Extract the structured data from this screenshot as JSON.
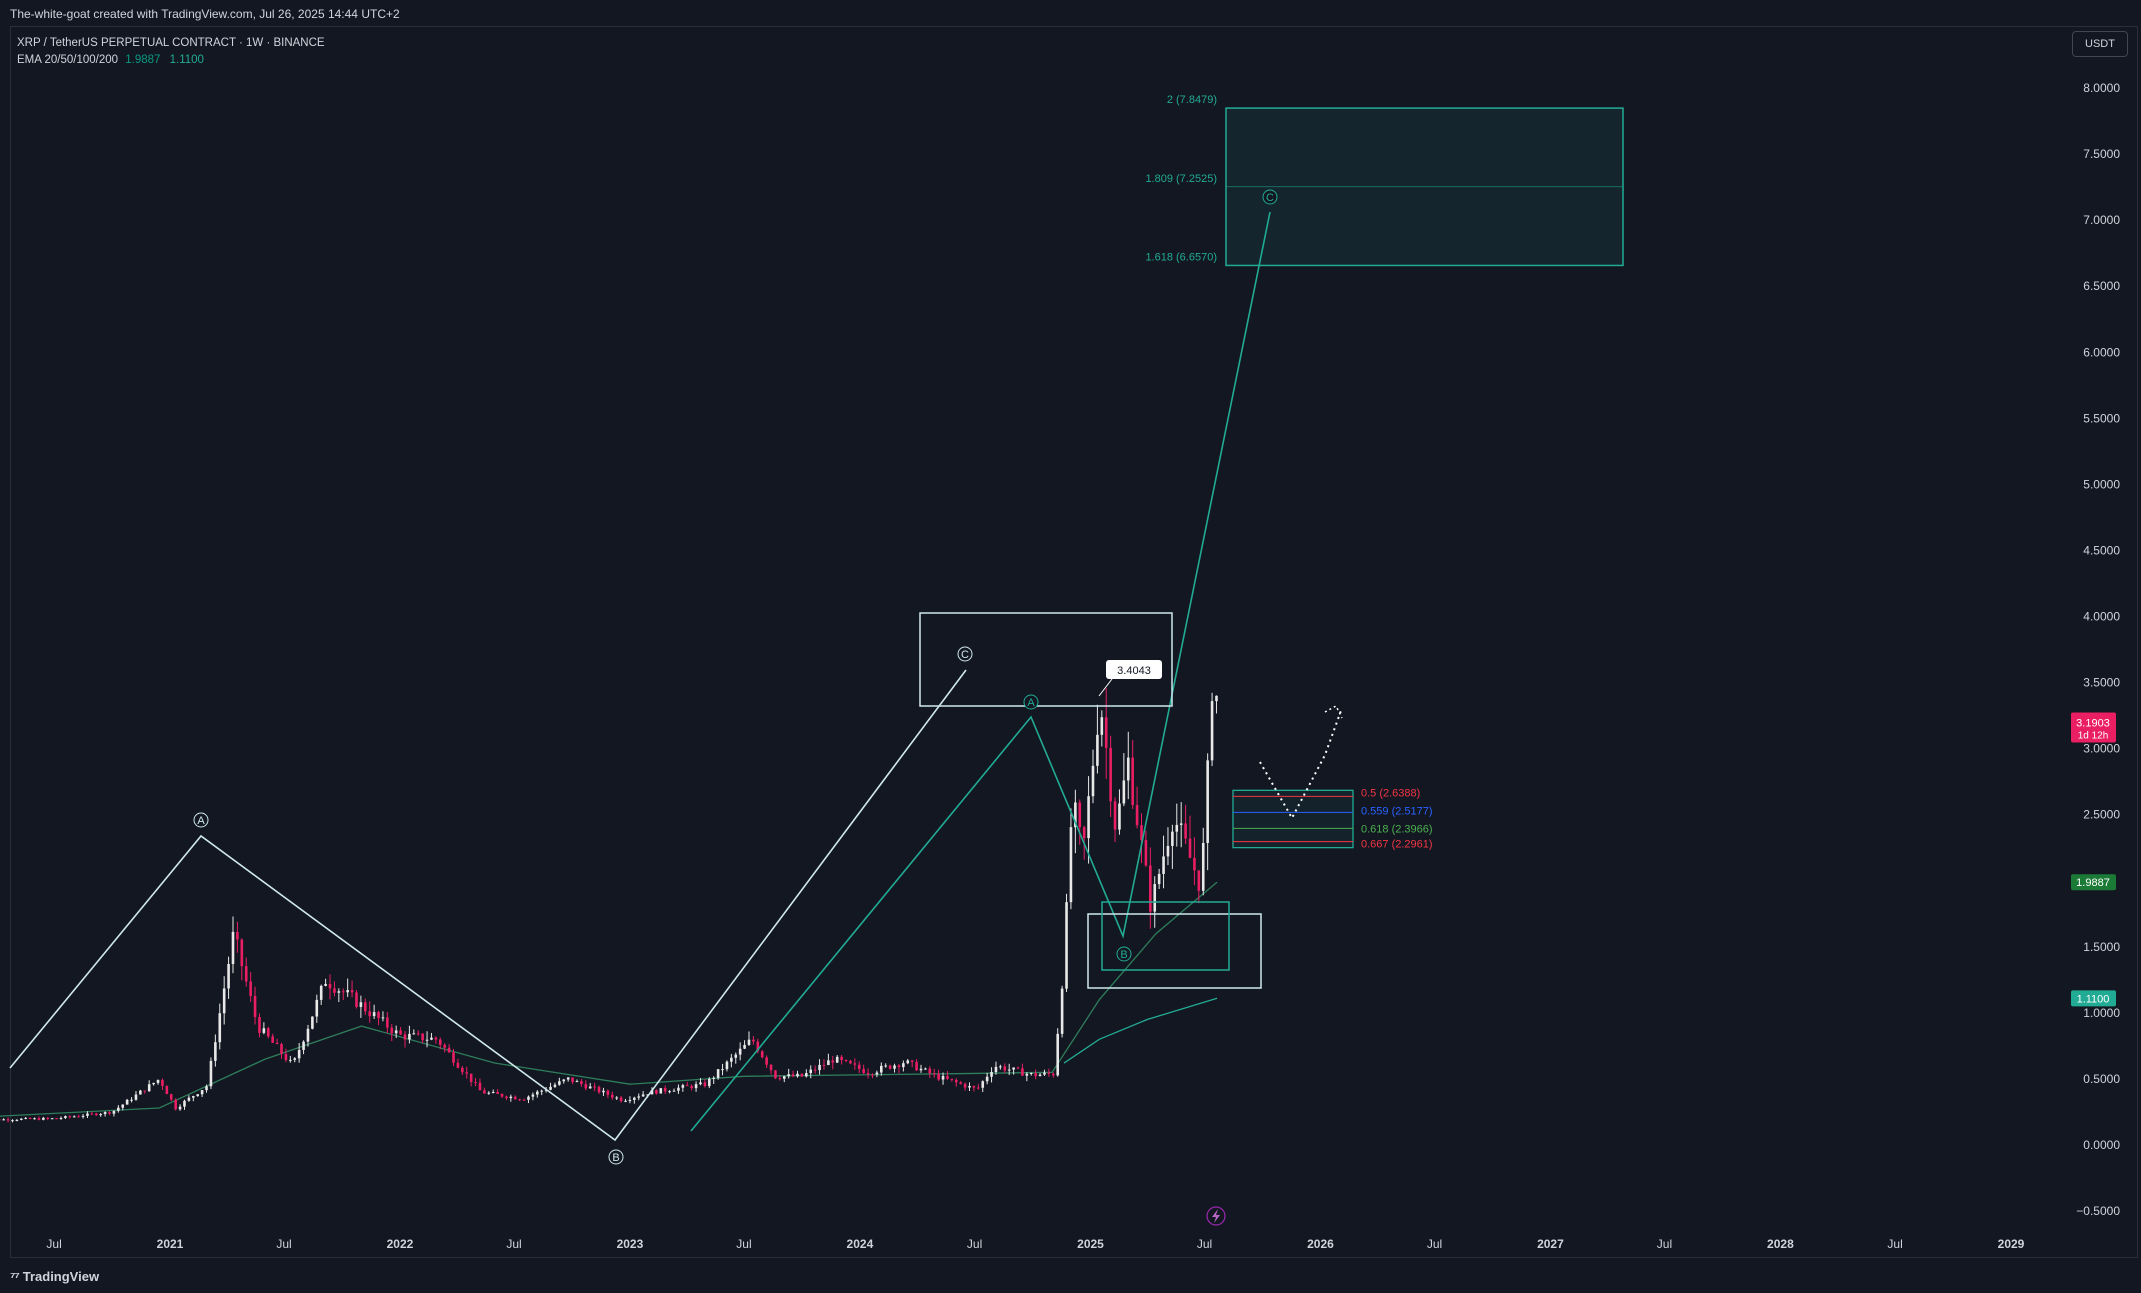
{
  "header": {
    "credit": "The-white-goat created with TradingView.com, Jul 26, 2025 14:44 UTC+2"
  },
  "legend": {
    "symbol_line": "XRP / TetherUS PERPETUAL CONTRACT · 1W · BINANCE",
    "ema_name": "EMA 20/50/100/200",
    "ema_values": [
      "1.9887",
      "1.1100"
    ]
  },
  "currency_button": "USDT",
  "footer": {
    "logo_text": "TradingView"
  },
  "colors": {
    "background": "#131722",
    "candle_up": "#e8e8e8",
    "candle_down": "#e91e63",
    "ema_line": "#2e7d5b",
    "wave_white": "#cfe8ee",
    "wave_teal": "#22ab94",
    "fib_red": "#f23645",
    "fib_blue": "#2962ff",
    "fib_green": "#4caf50"
  },
  "chart_data": {
    "type": "candlestick",
    "title": "XRP / TetherUS PERPETUAL CONTRACT · 1W · BINANCE",
    "ylim": [
      -0.5,
      8.2
    ],
    "y_ticks": [
      "8.0000",
      "7.5000",
      "7.0000",
      "6.5000",
      "6.0000",
      "5.5000",
      "5.0000",
      "4.5000",
      "4.0000",
      "3.5000",
      "3.0000",
      "2.5000",
      "1.5000",
      "1.0000",
      "0.5000",
      "0.0000",
      "−0.5000"
    ],
    "x_ticks": [
      "Jul",
      "2021",
      "Jul",
      "2022",
      "Jul",
      "2023",
      "Jul",
      "2024",
      "Jul",
      "2025",
      "Jul",
      "2026",
      "Jul",
      "2027",
      "Jul",
      "2028",
      "Jul",
      "2029"
    ],
    "x_tick_dates": [
      "2020-07-01",
      "2021-01-01",
      "2021-07-01",
      "2022-01-01",
      "2022-07-01",
      "2023-01-01",
      "2023-07-01",
      "2024-01-01",
      "2024-07-01",
      "2025-01-01",
      "2025-07-01",
      "2026-01-01",
      "2026-07-01",
      "2027-01-01",
      "2027-07-01",
      "2028-01-01",
      "2028-07-01",
      "2029-01-01"
    ],
    "price_path": [
      [
        "2020-03-01",
        0.19
      ],
      [
        "2020-07-01",
        0.2
      ],
      [
        "2020-10-01",
        0.25
      ],
      [
        "2020-12-15",
        0.5
      ],
      [
        "2021-01-10",
        0.28
      ],
      [
        "2021-03-01",
        0.45
      ],
      [
        "2021-04-12",
        1.6
      ],
      [
        "2021-05-20",
        0.9
      ],
      [
        "2021-07-15",
        0.6
      ],
      [
        "2021-09-05",
        1.25
      ],
      [
        "2021-10-20",
        1.1
      ],
      [
        "2021-12-31",
        0.83
      ],
      [
        "2022-03-01",
        0.8
      ],
      [
        "2022-05-10",
        0.4
      ],
      [
        "2022-07-15",
        0.35
      ],
      [
        "2022-09-25",
        0.5
      ],
      [
        "2022-12-20",
        0.34
      ],
      [
        "2023-02-01",
        0.4
      ],
      [
        "2023-05-01",
        0.46
      ],
      [
        "2023-07-14",
        0.8
      ],
      [
        "2023-08-20",
        0.52
      ],
      [
        "2023-10-01",
        0.52
      ],
      [
        "2023-11-20",
        0.65
      ],
      [
        "2024-01-15",
        0.55
      ],
      [
        "2024-03-12",
        0.63
      ],
      [
        "2024-05-01",
        0.52
      ],
      [
        "2024-07-05",
        0.42
      ],
      [
        "2024-08-01",
        0.6
      ],
      [
        "2024-10-01",
        0.53
      ],
      [
        "2024-11-04",
        0.54
      ],
      [
        "2024-11-20",
        1.4
      ],
      [
        "2024-12-03",
        2.6
      ],
      [
        "2024-12-20",
        2.2
      ],
      [
        "2025-01-16",
        3.4
      ],
      [
        "2025-02-10",
        2.4
      ],
      [
        "2025-03-02",
        2.9
      ],
      [
        "2025-04-07",
        1.8
      ],
      [
        "2025-05-12",
        2.5
      ],
      [
        "2025-06-22",
        2.0
      ],
      [
        "2025-07-01",
        2.3
      ],
      [
        "2025-07-14",
        3.6
      ],
      [
        "2025-07-26",
        3.19
      ]
    ],
    "ema_line": [
      [
        "2020-03-01",
        0.21
      ],
      [
        "2020-12-15",
        0.28
      ],
      [
        "2021-06-01",
        0.65
      ],
      [
        "2021-11-01",
        0.9
      ],
      [
        "2022-06-01",
        0.62
      ],
      [
        "2023-01-01",
        0.46
      ],
      [
        "2023-07-01",
        0.52
      ],
      [
        "2024-06-01",
        0.54
      ],
      [
        "2024-11-01",
        0.55
      ],
      [
        "2025-01-15",
        1.1
      ],
      [
        "2025-04-15",
        1.6
      ],
      [
        "2025-07-21",
        1.99
      ]
    ],
    "ema_line2": [
      [
        "2024-11-20",
        0.62
      ],
      [
        "2025-01-15",
        0.8
      ],
      [
        "2025-04-01",
        0.95
      ],
      [
        "2025-07-21",
        1.11
      ]
    ],
    "price_label": {
      "value": "3.1903",
      "countdown": "1d 12h"
    },
    "ema_labels": [
      "1.9887",
      "1.1100"
    ],
    "callout": "3.4043",
    "annotations": [
      "Ⓐ",
      "Ⓑ",
      "Ⓒ"
    ],
    "fib_extension": [
      {
        "label": "2 (7.8479)",
        "value": 7.8479
      },
      {
        "label": "1.809 (7.2525)",
        "value": 7.2525
      },
      {
        "label": "1.618 (6.6570)",
        "value": 6.657
      }
    ],
    "fib_retracement": [
      {
        "label": "0.5 (2.6388)",
        "value": 2.6388,
        "color": "#f23645"
      },
      {
        "label": "0.559 (2.5177)",
        "value": 2.5177,
        "color": "#2962ff"
      },
      {
        "label": "0.618 (2.3966)",
        "value": 2.3966,
        "color": "#4caf50"
      },
      {
        "label": "0.667 (2.2961)",
        "value": 2.2961,
        "color": "#f23645"
      }
    ]
  }
}
